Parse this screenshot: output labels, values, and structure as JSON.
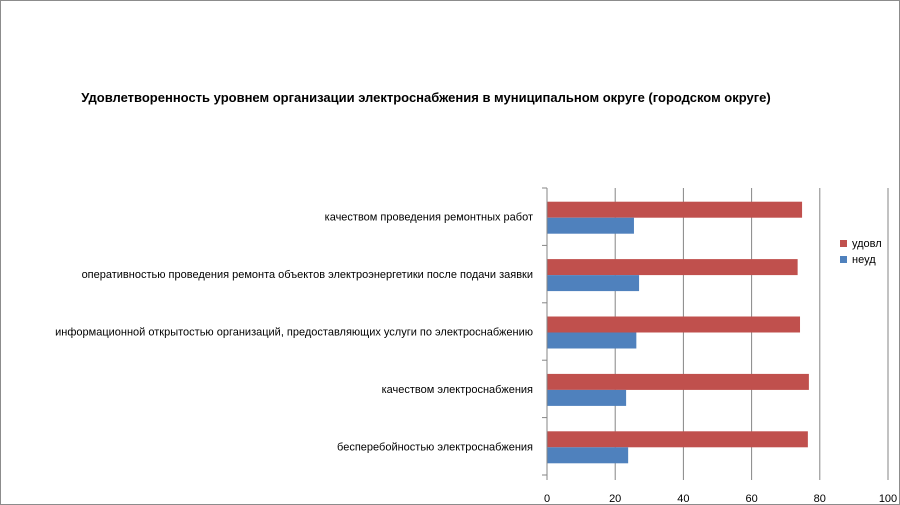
{
  "chart_data": {
    "type": "bar",
    "orientation": "horizontal",
    "title": "Удовлетворенность уровнем организации электроснабжения в муниципальном округе (городском округе)",
    "categories": [
      "бесперебойностью электроснабжения",
      "качеством электроснабжения",
      "информационной открытостью организаций, предоставляющих услуги по электроснабжению",
      "оперативностью проведения ремонта объектов электроэнергетики после подачи заявки",
      "качеством проведения ремонтных работ"
    ],
    "series": [
      {
        "name": "удовл",
        "color": "#c0504d",
        "values": [
          76.5,
          76.8,
          74.2,
          73.5,
          74.8
        ]
      },
      {
        "name": "неуд",
        "color": "#4f81bd",
        "values": [
          23.8,
          23.2,
          26.2,
          27.0,
          25.5
        ]
      }
    ],
    "xlim": [
      0,
      100
    ],
    "xticks": [
      0,
      20,
      40,
      60,
      80,
      100
    ],
    "grid": true,
    "legend": "right"
  }
}
